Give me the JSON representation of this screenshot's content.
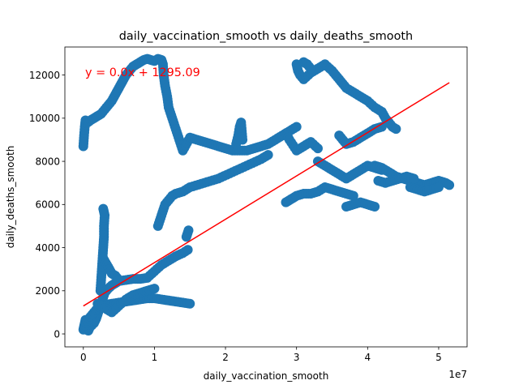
{
  "chart_data": {
    "type": "scatter",
    "title": "daily_vaccination_smooth vs daily_deaths_smooth",
    "xlabel": "daily_vaccination_smooth",
    "ylabel": "daily_deaths_smooth",
    "x_offset_label": "1e7",
    "annotation": "y = 0.0x + 1295.09",
    "xlim": [
      -2600000,
      54000000
    ],
    "ylim": [
      -600,
      13300
    ],
    "x_ticks": [
      0,
      10000000,
      20000000,
      30000000,
      40000000,
      50000000
    ],
    "x_tick_labels": [
      "0",
      "1",
      "2",
      "3",
      "4",
      "5"
    ],
    "y_ticks": [
      0,
      2000,
      4000,
      6000,
      8000,
      10000,
      12000
    ],
    "y_tick_labels": [
      "0",
      "2000",
      "4000",
      "6000",
      "8000",
      "10000",
      "12000"
    ],
    "grid": false,
    "colors": {
      "points": "#1f77b4",
      "fit_line": "#ff0000",
      "annotation": "#ff0000"
    },
    "fit_line": {
      "slope": 0.000201,
      "intercept": 1295.09,
      "x_range": [
        0,
        51500000
      ]
    },
    "point_paths": [
      [
        [
          0,
          200
        ],
        [
          100000,
          350
        ],
        [
          200000,
          500
        ],
        [
          300000,
          650
        ],
        [
          350000,
          200
        ],
        [
          500000,
          300
        ],
        [
          700000,
          150
        ],
        [
          900000,
          300
        ],
        [
          1200000,
          400
        ],
        [
          1500000,
          500
        ],
        [
          1800000,
          700
        ],
        [
          2000000,
          900
        ],
        [
          2200000,
          1100
        ],
        [
          2400000,
          1300
        ],
        [
          2600000,
          1500
        ],
        [
          2800000,
          1700
        ],
        [
          3000000,
          1900
        ],
        [
          3500000,
          2100
        ],
        [
          4000000,
          2250
        ],
        [
          4500000,
          2350
        ],
        [
          5000000,
          2450
        ],
        [
          6000000,
          2500
        ],
        [
          7000000,
          2550
        ],
        [
          8000000,
          2550
        ],
        [
          9000000,
          2600
        ],
        [
          10000000,
          2900
        ],
        [
          11000000,
          3200
        ],
        [
          12000000,
          3400
        ],
        [
          13000000,
          3600
        ],
        [
          14000000,
          3750
        ],
        [
          14700000,
          3900
        ]
      ],
      [
        [
          200000,
          400
        ],
        [
          500000,
          600
        ],
        [
          1000000,
          800
        ],
        [
          1500000,
          1000
        ],
        [
          2000000,
          1200
        ],
        [
          2500000,
          1300
        ],
        [
          3000000,
          1350
        ],
        [
          4000000,
          1400
        ],
        [
          5000000,
          1450
        ],
        [
          6000000,
          1500
        ],
        [
          7000000,
          1550
        ],
        [
          8000000,
          1600
        ],
        [
          9000000,
          1650
        ],
        [
          10000000,
          1650
        ],
        [
          11000000,
          1600
        ],
        [
          12000000,
          1550
        ],
        [
          13000000,
          1500
        ],
        [
          14000000,
          1450
        ],
        [
          15000000,
          1400
        ]
      ],
      [
        [
          2000000,
          1400
        ],
        [
          3000000,
          1200
        ],
        [
          4000000,
          1000
        ],
        [
          5000000,
          1300
        ],
        [
          6000000,
          1600
        ],
        [
          7000000,
          1800
        ],
        [
          8000000,
          1900
        ],
        [
          9000000,
          2000
        ],
        [
          10000000,
          2100
        ]
      ],
      [
        [
          2400000,
          2000
        ],
        [
          2500000,
          2500
        ],
        [
          2600000,
          3000
        ],
        [
          2700000,
          3500
        ],
        [
          2800000,
          4000
        ],
        [
          2900000,
          4500
        ],
        [
          2900000,
          5000
        ],
        [
          3000000,
          5500
        ],
        [
          2800000,
          5800
        ]
      ],
      [
        [
          2800000,
          3500
        ],
        [
          3500000,
          3100
        ],
        [
          4000000,
          2800
        ],
        [
          4500000,
          2700
        ],
        [
          5000000,
          2500
        ]
      ],
      [
        [
          10500000,
          5000
        ],
        [
          11000000,
          5500
        ],
        [
          11500000,
          6000
        ],
        [
          12000000,
          6200
        ],
        [
          12500000,
          6400
        ],
        [
          13000000,
          6500
        ],
        [
          14000000,
          6600
        ],
        [
          15000000,
          6800
        ],
        [
          17000000,
          7000
        ],
        [
          19000000,
          7200
        ],
        [
          21000000,
          7500
        ],
        [
          23000000,
          7800
        ],
        [
          25000000,
          8100
        ],
        [
          26000000,
          8300
        ]
      ],
      [
        [
          14800000,
          4800
        ],
        [
          14500000,
          4500
        ]
      ],
      [
        [
          0,
          8700
        ],
        [
          100000,
          9200
        ],
        [
          200000,
          9600
        ],
        [
          300000,
          9900
        ],
        [
          600000,
          9800
        ],
        [
          1000000,
          9900
        ],
        [
          1500000,
          10000
        ],
        [
          2000000,
          10100
        ],
        [
          2500000,
          10200
        ],
        [
          3000000,
          10400
        ],
        [
          3500000,
          10600
        ],
        [
          4000000,
          10800
        ],
        [
          4500000,
          11100
        ],
        [
          5000000,
          11400
        ],
        [
          5500000,
          11700
        ],
        [
          6000000,
          12000
        ],
        [
          6500000,
          12200
        ],
        [
          7000000,
          12400
        ],
        [
          7500000,
          12500
        ],
        [
          8000000,
          12600
        ],
        [
          8500000,
          12700
        ],
        [
          9000000,
          12750
        ],
        [
          9500000,
          12700
        ],
        [
          10000000,
          12650
        ],
        [
          10500000,
          12750
        ],
        [
          11000000,
          12700
        ],
        [
          11200000,
          12500
        ],
        [
          11300000,
          12000
        ],
        [
          11500000,
          11500
        ],
        [
          11800000,
          11000
        ],
        [
          12000000,
          10500
        ],
        [
          12500000,
          10000
        ],
        [
          13000000,
          9500
        ],
        [
          13500000,
          9000
        ],
        [
          14000000,
          8500
        ],
        [
          15000000,
          9100
        ],
        [
          16000000,
          9000
        ],
        [
          17000000,
          8900
        ],
        [
          18000000,
          8800
        ],
        [
          19000000,
          8700
        ],
        [
          20000000,
          8600
        ],
        [
          21000000,
          8500
        ],
        [
          22000000,
          8500
        ],
        [
          23000000,
          8500
        ],
        [
          24000000,
          8600
        ],
        [
          25000000,
          8700
        ],
        [
          26000000,
          8800
        ],
        [
          27000000,
          9000
        ],
        [
          28000000,
          9200
        ],
        [
          29000000,
          9400
        ],
        [
          30000000,
          9600
        ]
      ],
      [
        [
          21500000,
          8800
        ],
        [
          21800000,
          9200
        ],
        [
          22000000,
          9600
        ],
        [
          22200000,
          9800
        ],
        [
          22300000,
          9400
        ],
        [
          22400000,
          9000
        ]
      ],
      [
        [
          28500000,
          9300
        ],
        [
          29000000,
          9000
        ],
        [
          30000000,
          8500
        ],
        [
          31000000,
          8700
        ],
        [
          32000000,
          8900
        ],
        [
          33000000,
          8600
        ]
      ],
      [
        [
          30000000,
          12500
        ],
        [
          30200000,
          12200
        ],
        [
          30500000,
          12000
        ],
        [
          31000000,
          11800
        ],
        [
          32000000,
          12100
        ],
        [
          33000000,
          12300
        ],
        [
          34000000,
          12500
        ],
        [
          35000000,
          12200
        ],
        [
          36000000,
          11800
        ],
        [
          37000000,
          11400
        ],
        [
          38000000,
          11200
        ],
        [
          39000000,
          11000
        ],
        [
          40000000,
          10800
        ],
        [
          41000000,
          10500
        ],
        [
          42000000,
          10300
        ],
        [
          42500000,
          10000
        ],
        [
          43000000,
          9800
        ],
        [
          43500000,
          9600
        ],
        [
          44000000,
          9500
        ]
      ],
      [
        [
          31000000,
          12600
        ],
        [
          31500000,
          12500
        ],
        [
          32000000,
          12300
        ]
      ],
      [
        [
          36000000,
          9200
        ],
        [
          36500000,
          9000
        ],
        [
          37000000,
          8800
        ],
        [
          38000000,
          8900
        ],
        [
          39000000,
          9100
        ],
        [
          40000000,
          9300
        ],
        [
          41000000,
          9500
        ],
        [
          42000000,
          9600
        ]
      ],
      [
        [
          33000000,
          8000
        ],
        [
          34000000,
          7800
        ],
        [
          35000000,
          7600
        ],
        [
          36000000,
          7400
        ],
        [
          37000000,
          7200
        ],
        [
          38000000,
          7400
        ],
        [
          39000000,
          7600
        ],
        [
          40000000,
          7800
        ],
        [
          41000000,
          7700
        ],
        [
          42000000,
          7600
        ]
      ],
      [
        [
          28500000,
          6100
        ],
        [
          29000000,
          6200
        ],
        [
          29500000,
          6300
        ],
        [
          30000000,
          6400
        ],
        [
          31000000,
          6500
        ],
        [
          32000000,
          6500
        ],
        [
          33000000,
          6600
        ],
        [
          34000000,
          6800
        ],
        [
          35000000,
          6700
        ],
        [
          36000000,
          6600
        ],
        [
          37000000,
          6500
        ],
        [
          38000000,
          6400
        ]
      ],
      [
        [
          37000000,
          5900
        ],
        [
          38000000,
          6000
        ],
        [
          39000000,
          6100
        ],
        [
          40000000,
          6000
        ],
        [
          41000000,
          5900
        ]
      ],
      [
        [
          41000000,
          7800
        ],
        [
          42000000,
          7700
        ],
        [
          43000000,
          7500
        ],
        [
          44000000,
          7300
        ],
        [
          45000000,
          7200
        ],
        [
          46000000,
          7100
        ],
        [
          47000000,
          7000
        ],
        [
          48000000,
          6900
        ],
        [
          49000000,
          7000
        ],
        [
          50000000,
          7100
        ],
        [
          51000000,
          7000
        ],
        [
          51500000,
          6900
        ]
      ],
      [
        [
          46000000,
          6800
        ],
        [
          47000000,
          6700
        ],
        [
          48000000,
          6600
        ],
        [
          49000000,
          6700
        ],
        [
          50000000,
          6800
        ]
      ],
      [
        [
          41500000,
          7100
        ],
        [
          42500000,
          7000
        ],
        [
          43500000,
          7100
        ],
        [
          44500000,
          7200
        ],
        [
          45500000,
          7300
        ],
        [
          46500000,
          7200
        ]
      ]
    ]
  }
}
